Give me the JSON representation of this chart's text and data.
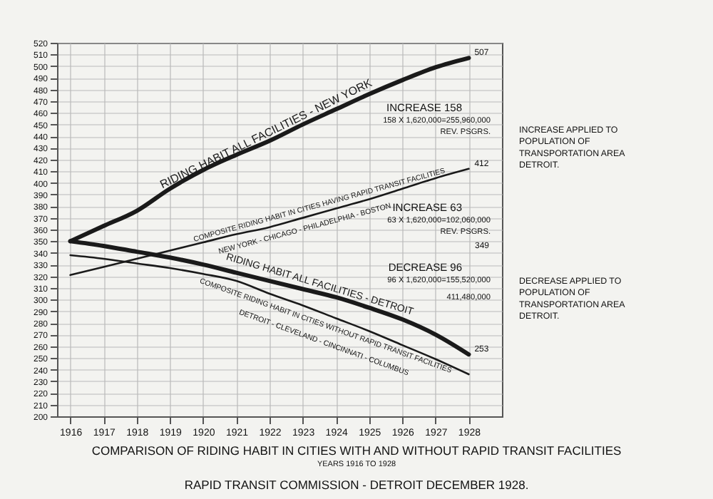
{
  "chart_data": {
    "type": "line",
    "title": "COMPARISON OF RIDING HABIT IN CITIES WITH AND WITHOUT RAPID TRANSIT FACILITIES",
    "subtitle": "YEARS 1916 TO 1928",
    "x": [
      1916,
      1917,
      1918,
      1919,
      1920,
      1921,
      1922,
      1923,
      1924,
      1925,
      1926,
      1927,
      1928
    ],
    "series": [
      {
        "name": "RIDING HABIT ALL FACILITIES - NEW YORK",
        "color": "#1a1a1a",
        "values": [
          350,
          363,
          376,
          395,
          411,
          424,
          436,
          450,
          463,
          476,
          488,
          499,
          507
        ],
        "value_labels": [
          null,
          null,
          null,
          null,
          null,
          null,
          null,
          null,
          null,
          null,
          null,
          null,
          "507"
        ]
      },
      {
        "name": "COMPOSITE RIDING HABIT IN CITIES HAVING RAPID TRANSIT FACILITIES",
        "color": "#1a1a1a",
        "values": [
          321,
          328,
          335,
          342,
          349,
          356,
          362,
          370,
          378,
          386,
          395,
          404,
          412
        ],
        "value_labels": [
          null,
          null,
          null,
          null,
          null,
          null,
          null,
          null,
          null,
          null,
          null,
          null,
          "412"
        ]
      },
      {
        "name": "RIDING HABIT ALL FACILITIES - DETROIT",
        "color": "#1a1a1a",
        "values": [
          350,
          346,
          341,
          336,
          330,
          323,
          316,
          309,
          302,
          293,
          283,
          270,
          253
        ],
        "value_labels": [
          null,
          null,
          null,
          null,
          null,
          null,
          null,
          null,
          null,
          null,
          null,
          null,
          "253"
        ]
      },
      {
        "name": "COMPOSITE RIDING HABIT IN CITIES WITHOUT RAPID TRANSIT FACILITIES",
        "color": "#1a1a1a",
        "values": [
          338,
          335,
          331,
          327,
          322,
          316,
          305,
          295,
          284,
          273,
          261,
          249,
          236
        ]
      }
    ],
    "xlim": [
      1915.6,
      1929
    ],
    "xticks": [
      1916,
      1917,
      1918,
      1919,
      1920,
      1921,
      1922,
      1923,
      1924,
      1925,
      1926,
      1927,
      1928
    ],
    "ylim": [
      200,
      520
    ],
    "yticks": [
      200,
      210,
      220,
      230,
      240,
      250,
      260,
      270,
      280,
      290,
      300,
      310,
      320,
      330,
      340,
      350,
      360,
      370,
      380,
      390,
      400,
      410,
      420,
      430,
      440,
      450,
      460,
      470,
      480,
      490,
      500,
      510,
      520
    ],
    "grid": true,
    "marker": "none",
    "line_style": "solid",
    "annotations": [
      "NEW YORK - CHICAGO - PHILADELPHIA - BOSTON",
      "DETROIT - CLEVELAND - CINCINNATI - COLUMBUS",
      "349",
      "INCREASE 158",
      "158 X 1,620,000=255,960,000",
      "REV. PSGRS.",
      "INCREASE 63",
      "63 X 1,620,000=102,060,000",
      "REV. PSGRS.",
      "DECREASE 96",
      "96 X 1,620,000=155,520,000",
      "411,480,000",
      "INCREASE APPLIED TO POPULATION OF TRANSPORTATION AREA DETROIT.",
      "DECREASE APPLIED TO POPULATION OF TRANSPORTATION AREA DETROIT.",
      "RAPID TRANSIT COMMISSION - DETROIT DECEMBER 1928."
    ]
  }
}
